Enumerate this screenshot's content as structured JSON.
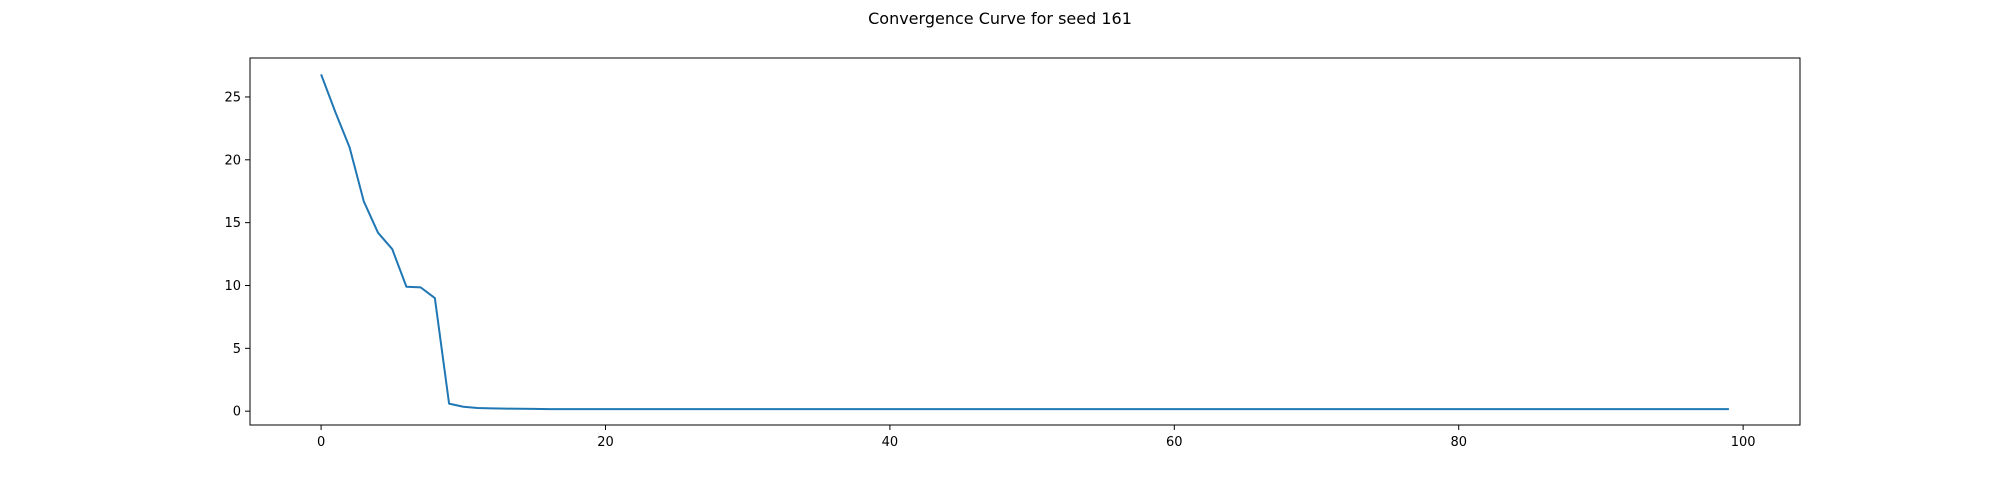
{
  "chart_data": {
    "type": "line",
    "title": "Convergence Curve for seed 161",
    "xlabel": "",
    "ylabel": "",
    "xlim": [
      -5,
      104
    ],
    "ylim": [
      -1.1,
      28.1
    ],
    "xticks": [
      0,
      20,
      40,
      60,
      80,
      100
    ],
    "yticks": [
      0,
      5,
      10,
      15,
      20,
      25
    ],
    "grid": false,
    "colors": {
      "line": "#1f77b4",
      "axes": "#000000",
      "background": "#ffffff"
    },
    "series": [
      {
        "x": [
          0,
          1,
          2,
          3,
          4,
          5,
          6,
          7,
          8,
          9,
          10,
          11,
          12,
          13,
          14,
          15,
          16,
          17,
          18,
          19,
          20,
          21,
          22,
          23,
          24,
          25,
          26,
          27,
          28,
          29,
          30,
          31,
          32,
          33,
          34,
          35,
          36,
          37,
          38,
          39,
          40,
          41,
          42,
          43,
          44,
          45,
          46,
          47,
          48,
          49,
          50,
          51,
          52,
          53,
          54,
          55,
          56,
          57,
          58,
          59,
          60,
          61,
          62,
          63,
          64,
          65,
          66,
          67,
          68,
          69,
          70,
          71,
          72,
          73,
          74,
          75,
          76,
          77,
          78,
          79,
          80,
          81,
          82,
          83,
          84,
          85,
          86,
          87,
          88,
          89,
          90,
          91,
          92,
          93,
          94,
          95,
          96,
          97,
          98,
          99
        ],
        "y": [
          26.8,
          23.8,
          21.0,
          16.7,
          14.2,
          12.9,
          9.9,
          9.85,
          9.0,
          0.6,
          0.35,
          0.25,
          0.22,
          0.2,
          0.19,
          0.18,
          0.16,
          0.16,
          0.16,
          0.16,
          0.16,
          0.16,
          0.16,
          0.16,
          0.16,
          0.16,
          0.16,
          0.16,
          0.16,
          0.16,
          0.16,
          0.16,
          0.16,
          0.16,
          0.16,
          0.16,
          0.16,
          0.16,
          0.16,
          0.16,
          0.16,
          0.16,
          0.16,
          0.16,
          0.16,
          0.16,
          0.16,
          0.16,
          0.16,
          0.16,
          0.16,
          0.16,
          0.16,
          0.16,
          0.16,
          0.16,
          0.16,
          0.16,
          0.16,
          0.16,
          0.16,
          0.16,
          0.16,
          0.16,
          0.16,
          0.16,
          0.16,
          0.16,
          0.16,
          0.16,
          0.16,
          0.16,
          0.16,
          0.16,
          0.16,
          0.16,
          0.16,
          0.16,
          0.16,
          0.16,
          0.16,
          0.16,
          0.16,
          0.16,
          0.16,
          0.16,
          0.16,
          0.16,
          0.16,
          0.16,
          0.16,
          0.16,
          0.16,
          0.16,
          0.16,
          0.16,
          0.16,
          0.16,
          0.16,
          0.16
        ]
      }
    ]
  }
}
